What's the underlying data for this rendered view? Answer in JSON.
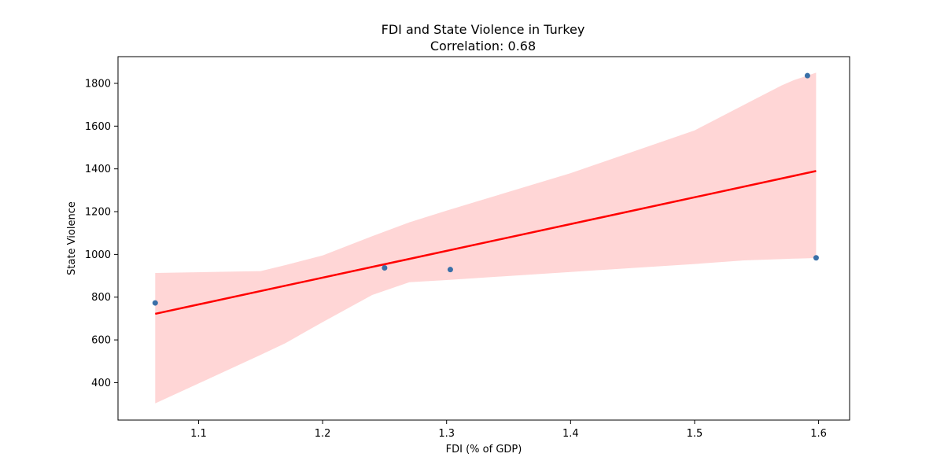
{
  "chart_data": {
    "type": "scatter",
    "title": "FDI and State Violence in Turkey",
    "subtitle": "Correlation: 0.68",
    "xlabel": "FDI (% of GDP)",
    "ylabel": "State Violence",
    "xlim": [
      1.035,
      1.625
    ],
    "ylim": [
      225,
      1925
    ],
    "xticks": [
      1.1,
      1.2,
      1.3,
      1.4,
      1.5,
      1.6
    ],
    "xtick_labels": [
      "1.1",
      "1.2",
      "1.3",
      "1.4",
      "1.5",
      "1.6"
    ],
    "yticks": [
      400,
      600,
      800,
      1000,
      1200,
      1400,
      1600,
      1800
    ],
    "ytick_labels": [
      "400",
      "600",
      "800",
      "1000",
      "1200",
      "1400",
      "1600",
      "1800"
    ],
    "grid": false,
    "points": [
      {
        "x": 1.065,
        "y": 773
      },
      {
        "x": 1.25,
        "y": 937
      },
      {
        "x": 1.303,
        "y": 929
      },
      {
        "x": 1.591,
        "y": 1836
      },
      {
        "x": 1.598,
        "y": 984
      }
    ],
    "regression_line": {
      "x": [
        1.065,
        1.598
      ],
      "y": [
        722,
        1390
      ]
    },
    "confidence_band": {
      "x": [
        1.065,
        1.15,
        1.17,
        1.2,
        1.24,
        1.27,
        1.3,
        1.4,
        1.5,
        1.54,
        1.57,
        1.58,
        1.598
      ],
      "upper": [
        913,
        922,
        950,
        995,
        1085,
        1150,
        1205,
        1380,
        1580,
        1700,
        1790,
        1815,
        1850
      ],
      "lower": [
        303,
        530,
        585,
        683,
        810,
        870,
        880,
        918,
        955,
        972,
        978,
        980,
        983
      ]
    },
    "colors": {
      "points": "#3a70a8",
      "line": "#ff0000",
      "band": "#ffd6d6"
    }
  }
}
